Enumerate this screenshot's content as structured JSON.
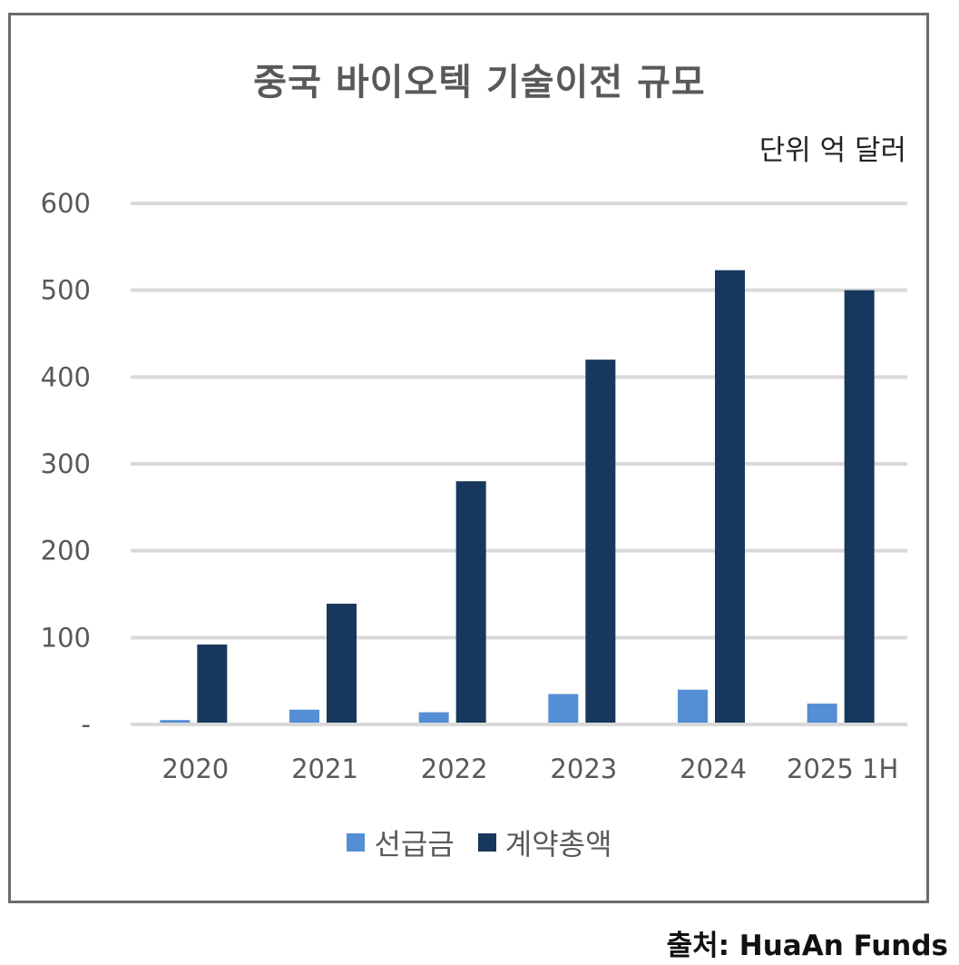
{
  "chart_data": {
    "type": "bar",
    "title": "중국 바이오텍 기술이전 규모",
    "unit_label": "단위 억 달러",
    "categories": [
      "2020",
      "2021",
      "2022",
      "2023",
      "2024",
      "2025 1H"
    ],
    "series": [
      {
        "name": "선급금",
        "color": "#558ed5",
        "values": [
          5,
          17,
          14,
          35,
          40,
          24
        ]
      },
      {
        "name": "계약총액",
        "color": "#17375e",
        "values": [
          92,
          139,
          280,
          420,
          523,
          500
        ]
      }
    ],
    "ylim": [
      0,
      600
    ],
    "yticks": [
      0,
      100,
      200,
      300,
      400,
      500,
      600
    ],
    "ytick_labels": [
      "-",
      "100",
      "200",
      "300",
      "400",
      "500",
      "600"
    ],
    "grid": true,
    "legend_position": "bottom"
  },
  "source": "출처: HuaAn Funds"
}
